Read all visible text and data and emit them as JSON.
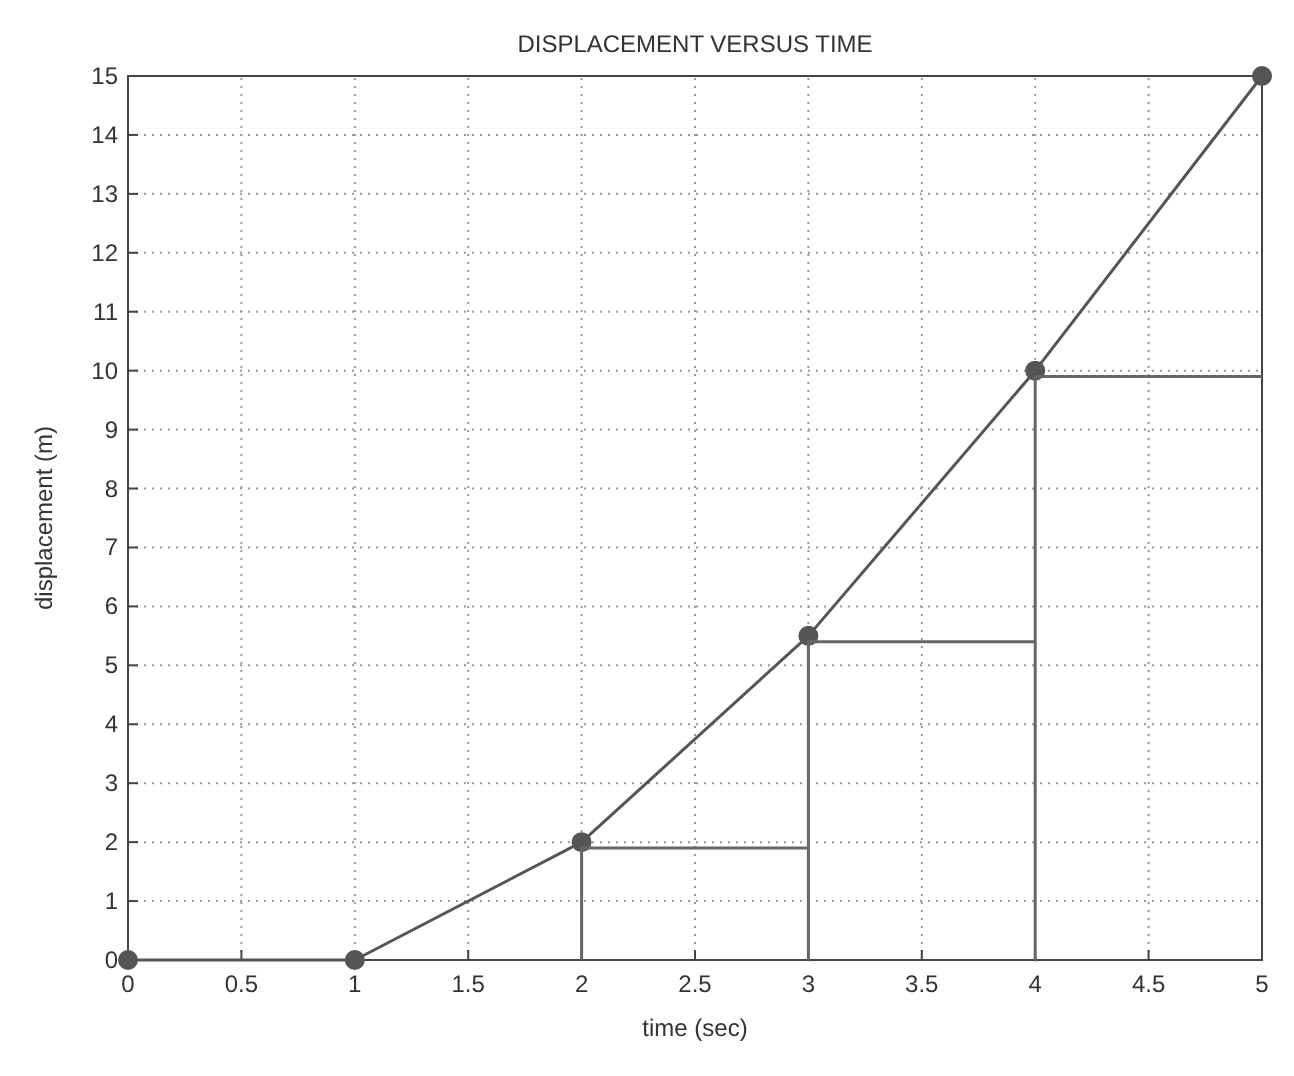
{
  "chart_data": {
    "type": "line",
    "title": "DISPLACEMENT VERSUS TIME",
    "xlabel": "time (sec)",
    "ylabel": "displacement (m)",
    "xlim": [
      0,
      5
    ],
    "xticks": [
      0,
      0.5,
      1,
      1.5,
      2,
      2.5,
      3,
      3.5,
      4,
      4.5,
      5
    ],
    "ylim": [
      0,
      15
    ],
    "yticks": [
      0,
      1,
      2,
      3,
      4,
      5,
      6,
      7,
      8,
      9,
      10,
      11,
      12,
      13,
      14,
      15
    ],
    "grid": true,
    "series": [
      {
        "color": "#555555",
        "x": [
          0,
          1,
          2,
          3,
          4,
          5
        ],
        "values": [
          0,
          0,
          2,
          5.5,
          10,
          15
        ],
        "marker": "circle",
        "line_style": "solid"
      },
      {
        "color": "#666666",
        "x": [
          2,
          2,
          3,
          3,
          3,
          4,
          4,
          4,
          5
        ],
        "values": [
          0,
          1.9,
          1.9,
          0,
          5.4,
          5.4,
          0,
          9.9,
          9.9
        ],
        "marker": "none",
        "line_style": "solid"
      }
    ]
  }
}
